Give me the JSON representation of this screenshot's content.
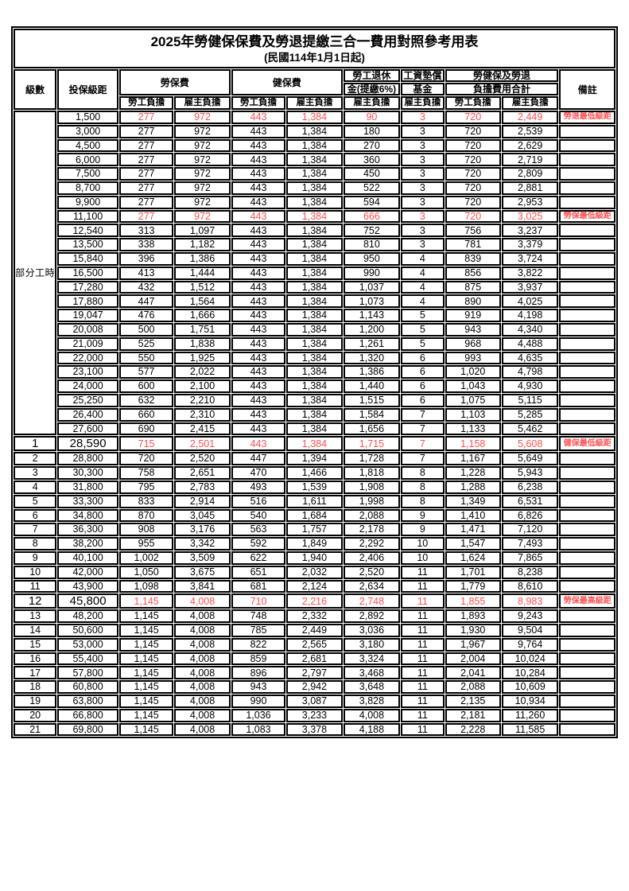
{
  "title": "2025年勞健保保費及勞退提繳三合一費用對照參考用表",
  "subtitle": "(民國114年1月1日起)",
  "colors": {
    "employee_burden_bg": "#F9CB9C",
    "employer_burden_bg": "#DEDAF0",
    "highlight_text": "#FF5050",
    "border": "#000000"
  },
  "header": {
    "level_label": "級數",
    "bracket_label": "投保級距",
    "labor_insurance_label": "勞保費",
    "health_insurance_label": "健保費",
    "pension_line1": "勞工退休",
    "pension_line2": "金(提繳6%)",
    "wage_fund_line1": "工資墊償",
    "wage_fund_line2": "基金",
    "total_line1": "勞健保及勞退",
    "total_line2": "負擔費用合計",
    "remark_label": "備註",
    "employee_label": "勞工負擔",
    "employer_label": "雇主負擔"
  },
  "part_time_group": {
    "label": "部分工時",
    "rowspan": 23
  },
  "rows": [
    {
      "level": "",
      "bracket": "1,500",
      "values": [
        "277",
        "972",
        "443",
        "1,384",
        "90",
        "3",
        "720",
        "2,449"
      ],
      "remark": "勞退最低級距",
      "red": true
    },
    {
      "level": "",
      "bracket": "3,000",
      "values": [
        "277",
        "972",
        "443",
        "1,384",
        "180",
        "3",
        "720",
        "2,539"
      ],
      "remark": ""
    },
    {
      "level": "",
      "bracket": "4,500",
      "values": [
        "277",
        "972",
        "443",
        "1,384",
        "270",
        "3",
        "720",
        "2,629"
      ],
      "remark": ""
    },
    {
      "level": "",
      "bracket": "6,000",
      "values": [
        "277",
        "972",
        "443",
        "1,384",
        "360",
        "3",
        "720",
        "2,719"
      ],
      "remark": ""
    },
    {
      "level": "",
      "bracket": "7,500",
      "values": [
        "277",
        "972",
        "443",
        "1,384",
        "450",
        "3",
        "720",
        "2,809"
      ],
      "remark": ""
    },
    {
      "level": "",
      "bracket": "8,700",
      "values": [
        "277",
        "972",
        "443",
        "1,384",
        "522",
        "3",
        "720",
        "2,881"
      ],
      "remark": ""
    },
    {
      "level": "",
      "bracket": "9,900",
      "values": [
        "277",
        "972",
        "443",
        "1,384",
        "594",
        "3",
        "720",
        "2,953"
      ],
      "remark": ""
    },
    {
      "level": "",
      "bracket": "11,100",
      "values": [
        "277",
        "972",
        "443",
        "1,384",
        "666",
        "3",
        "720",
        "3,025"
      ],
      "remark": "勞保最低級距",
      "red": true
    },
    {
      "level": "",
      "bracket": "12,540",
      "values": [
        "313",
        "1,097",
        "443",
        "1,384",
        "752",
        "3",
        "756",
        "3,237"
      ],
      "remark": ""
    },
    {
      "level": "",
      "bracket": "13,500",
      "values": [
        "338",
        "1,182",
        "443",
        "1,384",
        "810",
        "3",
        "781",
        "3,379"
      ],
      "remark": ""
    },
    {
      "level": "",
      "bracket": "15,840",
      "values": [
        "396",
        "1,386",
        "443",
        "1,384",
        "950",
        "4",
        "839",
        "3,724"
      ],
      "remark": ""
    },
    {
      "level": "",
      "bracket": "16,500",
      "values": [
        "413",
        "1,444",
        "443",
        "1,384",
        "990",
        "4",
        "856",
        "3,822"
      ],
      "remark": ""
    },
    {
      "level": "",
      "bracket": "17,280",
      "values": [
        "432",
        "1,512",
        "443",
        "1,384",
        "1,037",
        "4",
        "875",
        "3,937"
      ],
      "remark": ""
    },
    {
      "level": "",
      "bracket": "17,880",
      "values": [
        "447",
        "1,564",
        "443",
        "1,384",
        "1,073",
        "4",
        "890",
        "4,025"
      ],
      "remark": ""
    },
    {
      "level": "",
      "bracket": "19,047",
      "values": [
        "476",
        "1,666",
        "443",
        "1,384",
        "1,143",
        "5",
        "919",
        "4,198"
      ],
      "remark": ""
    },
    {
      "level": "",
      "bracket": "20,008",
      "values": [
        "500",
        "1,751",
        "443",
        "1,384",
        "1,200",
        "5",
        "943",
        "4,340"
      ],
      "remark": ""
    },
    {
      "level": "",
      "bracket": "21,009",
      "values": [
        "525",
        "1,838",
        "443",
        "1,384",
        "1,261",
        "5",
        "968",
        "4,488"
      ],
      "remark": ""
    },
    {
      "level": "",
      "bracket": "22,000",
      "values": [
        "550",
        "1,925",
        "443",
        "1,384",
        "1,320",
        "6",
        "993",
        "4,635"
      ],
      "remark": ""
    },
    {
      "level": "",
      "bracket": "23,100",
      "values": [
        "577",
        "2,022",
        "443",
        "1,384",
        "1,386",
        "6",
        "1,020",
        "4,798"
      ],
      "remark": ""
    },
    {
      "level": "",
      "bracket": "24,000",
      "values": [
        "600",
        "2,100",
        "443",
        "1,384",
        "1,440",
        "6",
        "1,043",
        "4,930"
      ],
      "remark": ""
    },
    {
      "level": "",
      "bracket": "25,250",
      "values": [
        "632",
        "2,210",
        "443",
        "1,384",
        "1,515",
        "6",
        "1,075",
        "5,115"
      ],
      "remark": ""
    },
    {
      "level": "",
      "bracket": "26,400",
      "values": [
        "660",
        "2,310",
        "443",
        "1,384",
        "1,584",
        "7",
        "1,103",
        "5,285"
      ],
      "remark": ""
    },
    {
      "level": "",
      "bracket": "27,600",
      "values": [
        "690",
        "2,415",
        "443",
        "1,384",
        "1,656",
        "7",
        "1,133",
        "5,462"
      ],
      "remark": ""
    },
    {
      "level": "1",
      "bracket": "28,590",
      "values": [
        "715",
        "2,501",
        "443",
        "1,384",
        "1,715",
        "7",
        "1,158",
        "5,608"
      ],
      "remark": "健保最低級距",
      "red": true,
      "emphasis": true
    },
    {
      "level": "2",
      "bracket": "28,800",
      "values": [
        "720",
        "2,520",
        "447",
        "1,394",
        "1,728",
        "7",
        "1,167",
        "5,649"
      ],
      "remark": ""
    },
    {
      "level": "3",
      "bracket": "30,300",
      "values": [
        "758",
        "2,651",
        "470",
        "1,466",
        "1,818",
        "8",
        "1,228",
        "5,943"
      ],
      "remark": ""
    },
    {
      "level": "4",
      "bracket": "31,800",
      "values": [
        "795",
        "2,783",
        "493",
        "1,539",
        "1,908",
        "8",
        "1,288",
        "6,238"
      ],
      "remark": ""
    },
    {
      "level": "5",
      "bracket": "33,300",
      "values": [
        "833",
        "2,914",
        "516",
        "1,611",
        "1,998",
        "8",
        "1,349",
        "6,531"
      ],
      "remark": ""
    },
    {
      "level": "6",
      "bracket": "34,800",
      "values": [
        "870",
        "3,045",
        "540",
        "1,684",
        "2,088",
        "9",
        "1,410",
        "6,826"
      ],
      "remark": ""
    },
    {
      "level": "7",
      "bracket": "36,300",
      "values": [
        "908",
        "3,176",
        "563",
        "1,757",
        "2,178",
        "9",
        "1,471",
        "7,120"
      ],
      "remark": ""
    },
    {
      "level": "8",
      "bracket": "38,200",
      "values": [
        "955",
        "3,342",
        "592",
        "1,849",
        "2,292",
        "10",
        "1,547",
        "7,493"
      ],
      "remark": ""
    },
    {
      "level": "9",
      "bracket": "40,100",
      "values": [
        "1,002",
        "3,509",
        "622",
        "1,940",
        "2,406",
        "10",
        "1,624",
        "7,865"
      ],
      "remark": ""
    },
    {
      "level": "10",
      "bracket": "42,000",
      "values": [
        "1,050",
        "3,675",
        "651",
        "2,032",
        "2,520",
        "11",
        "1,701",
        "8,238"
      ],
      "remark": ""
    },
    {
      "level": "11",
      "bracket": "43,900",
      "values": [
        "1,098",
        "3,841",
        "681",
        "2,124",
        "2,634",
        "11",
        "1,779",
        "8,610"
      ],
      "remark": ""
    },
    {
      "level": "12",
      "bracket": "45,800",
      "values": [
        "1,145",
        "4,008",
        "710",
        "2,216",
        "2,748",
        "11",
        "1,855",
        "8,983"
      ],
      "remark": "勞保最高級距",
      "red": true,
      "emphasis": true
    },
    {
      "level": "13",
      "bracket": "48,200",
      "values": [
        "1,145",
        "4,008",
        "748",
        "2,332",
        "2,892",
        "11",
        "1,893",
        "9,243"
      ],
      "remark": ""
    },
    {
      "level": "14",
      "bracket": "50,600",
      "values": [
        "1,145",
        "4,008",
        "785",
        "2,449",
        "3,036",
        "11",
        "1,930",
        "9,504"
      ],
      "remark": ""
    },
    {
      "level": "15",
      "bracket": "53,000",
      "values": [
        "1,145",
        "4,008",
        "822",
        "2,565",
        "3,180",
        "11",
        "1,967",
        "9,764"
      ],
      "remark": ""
    },
    {
      "level": "16",
      "bracket": "55,400",
      "values": [
        "1,145",
        "4,008",
        "859",
        "2,681",
        "3,324",
        "11",
        "2,004",
        "10,024"
      ],
      "remark": ""
    },
    {
      "level": "17",
      "bracket": "57,800",
      "values": [
        "1,145",
        "4,008",
        "896",
        "2,797",
        "3,468",
        "11",
        "2,041",
        "10,284"
      ],
      "remark": ""
    },
    {
      "level": "18",
      "bracket": "60,800",
      "values": [
        "1,145",
        "4,008",
        "943",
        "2,942",
        "3,648",
        "11",
        "2,088",
        "10,609"
      ],
      "remark": ""
    },
    {
      "level": "19",
      "bracket": "63,800",
      "values": [
        "1,145",
        "4,008",
        "990",
        "3,087",
        "3,828",
        "11",
        "2,135",
        "10,934"
      ],
      "remark": ""
    },
    {
      "level": "20",
      "bracket": "66,800",
      "values": [
        "1,145",
        "4,008",
        "1,036",
        "3,233",
        "4,008",
        "11",
        "2,181",
        "11,260"
      ],
      "remark": ""
    },
    {
      "level": "21",
      "bracket": "69,800",
      "values": [
        "1,145",
        "4,008",
        "1,083",
        "3,378",
        "4,188",
        "11",
        "2,228",
        "11,585"
      ],
      "remark": ""
    }
  ]
}
